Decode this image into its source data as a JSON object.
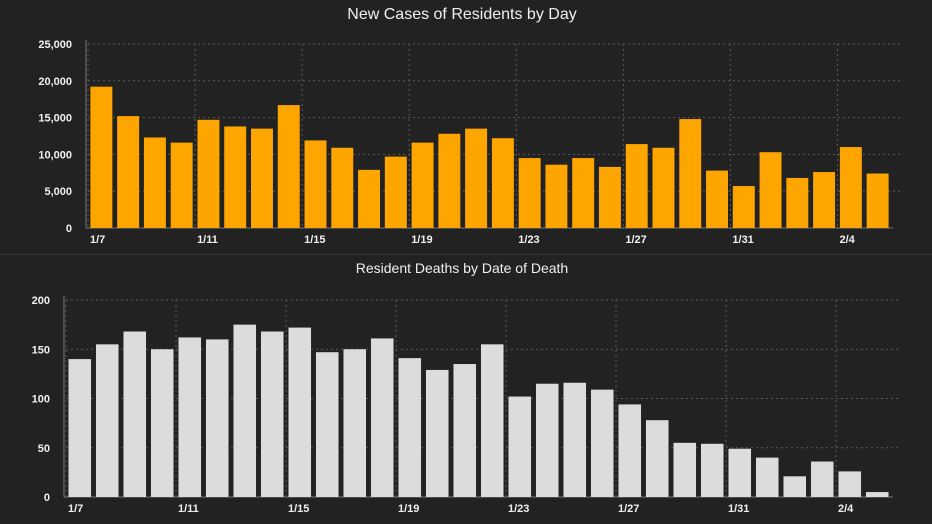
{
  "chart_data": [
    {
      "type": "bar",
      "title": "New Cases of Residents by Day",
      "color": "#FFA500",
      "ylim": [
        0,
        25000
      ],
      "yticks": [
        "0",
        "5,000",
        "10,000",
        "15,000",
        "20,000",
        "25,000"
      ],
      "ytick_values": [
        0,
        5000,
        10000,
        15000,
        20000,
        25000
      ],
      "xtick_labels": [
        "1/7",
        "1/11",
        "1/15",
        "1/19",
        "1/23",
        "1/27",
        "1/31",
        "2/4"
      ],
      "xtick_every": 4,
      "grid": true,
      "values": [
        19200,
        15200,
        12300,
        11600,
        14700,
        13800,
        13500,
        16700,
        11900,
        10900,
        7900,
        9700,
        11600,
        12800,
        13500,
        12200,
        9500,
        8600,
        9500,
        8300,
        11400,
        10900,
        14800,
        7800,
        5700,
        10300,
        6800,
        7600,
        11000,
        7400
      ]
    },
    {
      "type": "bar",
      "title": "Resident Deaths by Date of Death",
      "color": "#DCDCDC",
      "ylim": [
        0,
        200
      ],
      "yticks": [
        "0",
        "50",
        "100",
        "150",
        "200"
      ],
      "ytick_values": [
        0,
        50,
        100,
        150,
        200
      ],
      "xtick_labels": [
        "1/7",
        "1/11",
        "1/15",
        "1/19",
        "1/23",
        "1/27",
        "1/31",
        "2/4"
      ],
      "xtick_every": 4,
      "grid": true,
      "values": [
        140,
        155,
        168,
        150,
        162,
        160,
        175,
        168,
        172,
        147,
        150,
        161,
        141,
        129,
        135,
        155,
        102,
        115,
        116,
        109,
        94,
        78,
        55,
        54,
        49,
        40,
        21,
        36,
        26,
        5
      ]
    }
  ]
}
